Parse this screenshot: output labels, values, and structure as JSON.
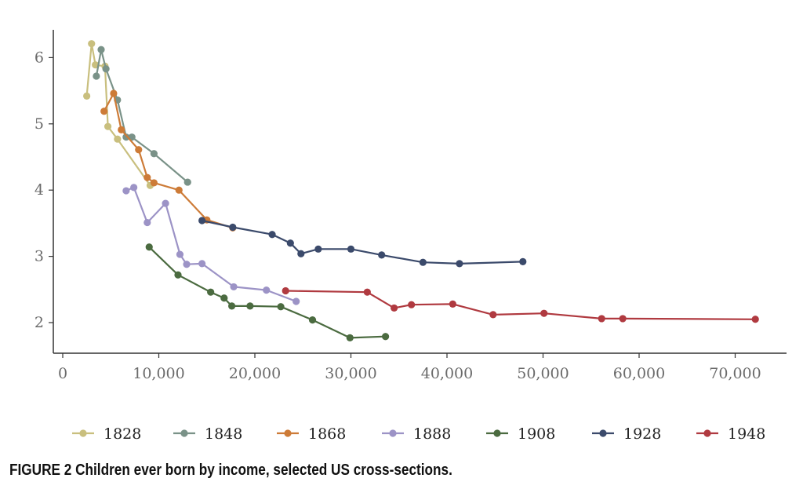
{
  "caption": "FIGURE 2  Children ever born by income, selected US cross-sections.",
  "chart_data": {
    "type": "line",
    "title": "",
    "xlabel": "",
    "ylabel": "",
    "xlim": [
      -500,
      75000
    ],
    "ylim": [
      1.6,
      6.45
    ],
    "x_ticks": [
      0,
      10000,
      20000,
      30000,
      40000,
      50000,
      60000,
      70000
    ],
    "x_tick_labels": [
      "0",
      "10,000",
      "20,000",
      "30,000",
      "40,000",
      "50,000",
      "60,000",
      "70,000"
    ],
    "y_ticks": [
      2,
      3,
      4,
      5,
      6
    ],
    "y_tick_labels": [
      "2",
      "3",
      "4",
      "5",
      "6"
    ],
    "grid": false,
    "legend_position": "bottom",
    "series": [
      {
        "name": "1828",
        "color": "#c9bf7e",
        "x": [
          2500,
          3000,
          3400,
          4400,
          4700,
          5700,
          9100
        ],
        "y": [
          5.42,
          6.21,
          5.89,
          5.87,
          4.96,
          4.77,
          4.07
        ]
      },
      {
        "name": "1848",
        "color": "#7a9288",
        "x": [
          3500,
          4000,
          4500,
          5700,
          6600,
          7200,
          9500,
          13000
        ],
        "y": [
          5.72,
          6.12,
          5.83,
          5.36,
          4.8,
          4.8,
          4.55,
          4.12
        ]
      },
      {
        "name": "1868",
        "color": "#cd7b37",
        "x": [
          4300,
          5300,
          6100,
          7900,
          8800,
          9500,
          12100,
          15000,
          17700
        ],
        "y": [
          5.19,
          5.46,
          4.91,
          4.61,
          4.19,
          4.11,
          4.0,
          3.55,
          3.43
        ]
      },
      {
        "name": "1888",
        "color": "#9c93c6",
        "x": [
          6600,
          7400,
          8800,
          10700,
          12200,
          12900,
          14500,
          17800,
          21200,
          24300
        ],
        "y": [
          3.99,
          4.04,
          3.51,
          3.8,
          3.03,
          2.88,
          2.89,
          2.54,
          2.49,
          2.32
        ]
      },
      {
        "name": "1908",
        "color": "#4b6b40",
        "x": [
          9000,
          12000,
          15400,
          16800,
          17600,
          19500,
          22700,
          26000,
          29900,
          33600
        ],
        "y": [
          3.14,
          2.72,
          2.46,
          2.37,
          2.25,
          2.25,
          2.24,
          2.04,
          1.77,
          1.79
        ]
      },
      {
        "name": "1928",
        "color": "#3b4a6b",
        "x": [
          14500,
          17700,
          21800,
          23700,
          24800,
          26600,
          30000,
          33200,
          37500,
          41300,
          47900
        ],
        "y": [
          3.54,
          3.44,
          3.33,
          3.2,
          3.04,
          3.11,
          3.11,
          3.02,
          2.91,
          2.89,
          2.92
        ]
      },
      {
        "name": "1948",
        "color": "#b03a40",
        "x": [
          23200,
          31700,
          34500,
          36300,
          40600,
          44800,
          50100,
          56100,
          58300,
          72100
        ],
        "y": [
          2.48,
          2.46,
          2.22,
          2.27,
          2.28,
          2.12,
          2.14,
          2.06,
          2.06,
          2.05
        ]
      }
    ]
  }
}
